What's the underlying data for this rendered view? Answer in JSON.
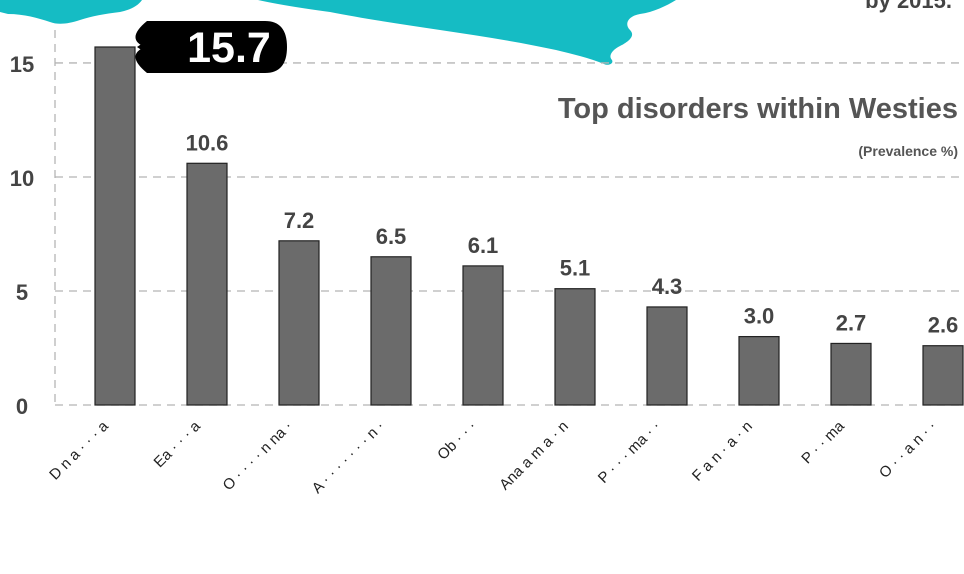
{
  "header_fragment": "by 2015.",
  "chart_data": {
    "type": "bar",
    "title": "Top disorders within Westies",
    "subtitle": "(Prevalence %)",
    "categories": [
      "D n a · · · a",
      "Ea · · · a",
      "O · · · · n na ·",
      "A · · · · · · · n ·",
      "Ob · · ·",
      "Ana a m a · n",
      "P · · · ma · ·",
      "F a n · a · n",
      "P · · ma",
      "O · · a n · ·"
    ],
    "values": [
      15.7,
      10.6,
      7.2,
      6.5,
      6.1,
      5.1,
      4.3,
      3.0,
      2.7,
      2.6
    ],
    "value_labels": [
      "15.7",
      "10.6",
      "7.2",
      "6.5",
      "6.1",
      "5.1",
      "4.3",
      "3.0",
      "2.7",
      "2.6"
    ],
    "highlight_index": 0,
    "yticks": [
      "0",
      "5",
      "10",
      "15"
    ],
    "ytick_values": [
      0,
      5,
      10,
      15
    ],
    "ylim": [
      0,
      15.7
    ],
    "grid": true,
    "colors": {
      "bar": "#6b6b6b",
      "bar_stroke": "#222222",
      "grid": "#b5b5b5",
      "text": "#444444",
      "callout": "#000000",
      "callout_text": "#ffffff",
      "banner": "#15bcc4"
    }
  }
}
